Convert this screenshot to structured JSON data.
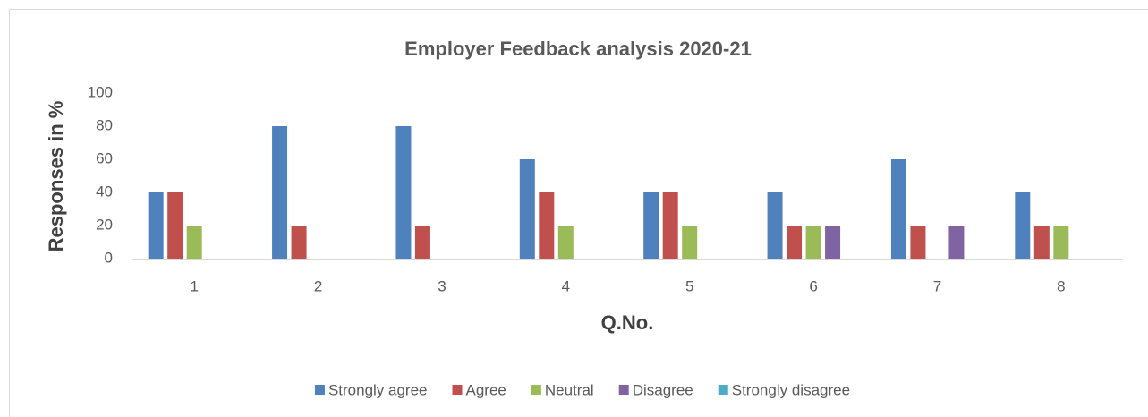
{
  "chart_data": {
    "type": "bar",
    "title": "Employer Feedback analysis 2020-21",
    "x_label": "Q.No.",
    "y_label": "Responses in %",
    "categories": [
      "1",
      "2",
      "3",
      "4",
      "5",
      "6",
      "7",
      "8"
    ],
    "series": [
      {
        "name": "Strongly agree",
        "color": "#4f81bd",
        "values": [
          40,
          80,
          80,
          60,
          40,
          40,
          60,
          40
        ]
      },
      {
        "name": "Agree",
        "color": "#c0504d",
        "values": [
          40,
          20,
          20,
          40,
          40,
          20,
          20,
          20
        ]
      },
      {
        "name": "Neutral",
        "color": "#9bbb59",
        "values": [
          20,
          0,
          0,
          20,
          20,
          20,
          0,
          20
        ]
      },
      {
        "name": "Disagree",
        "color": "#8064a2",
        "values": [
          0,
          0,
          0,
          0,
          0,
          20,
          20,
          0
        ]
      },
      {
        "name": "Strongly disagree",
        "color": "#4bacc6",
        "values": [
          0,
          0,
          0,
          0,
          0,
          0,
          0,
          0
        ]
      }
    ],
    "ylim": [
      0,
      100
    ],
    "yticks": [
      0,
      20,
      40,
      60,
      80,
      100
    ],
    "grid": false,
    "legend": "bottom"
  }
}
